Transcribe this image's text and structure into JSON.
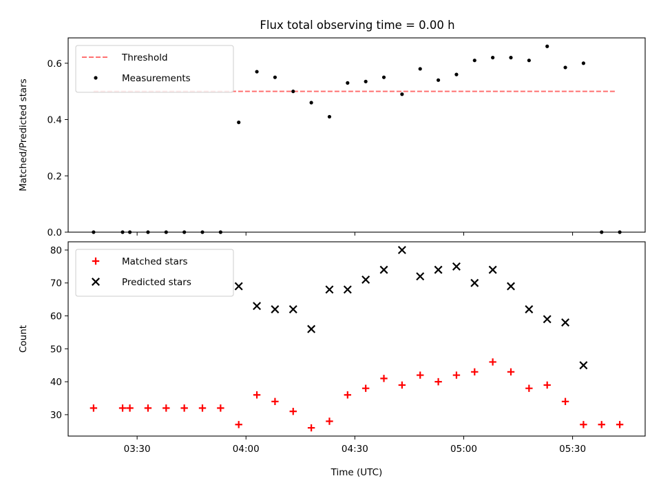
{
  "title": "Flux total observing time = 0.00 h",
  "colors": {
    "threshold": "#ff7070",
    "measurement": "#000000",
    "matched": "#ff0000",
    "predicted": "#000000"
  },
  "chart_data": [
    {
      "type": "scatter",
      "ylabel": "Matched/Predicted stars",
      "xlim": [
        "03:11",
        "05:50"
      ],
      "ylim": [
        0,
        0.69
      ],
      "yticks": [
        0.0,
        0.2,
        0.4,
        0.6
      ],
      "ytick_labels": [
        "0.0",
        "0.2",
        "0.4",
        "0.6"
      ],
      "legend_position": "upper-left",
      "series": [
        {
          "name": "Threshold",
          "kind": "dashed-line",
          "x": [
            "03:18",
            "05:42"
          ],
          "y": [
            0.5,
            0.5
          ]
        },
        {
          "name": "Measurements",
          "kind": "dot",
          "x": [
            "03:18",
            "03:26",
            "03:28",
            "03:33",
            "03:38",
            "03:43",
            "03:48",
            "03:53",
            "03:58",
            "04:03",
            "04:08",
            "04:13",
            "04:18",
            "04:23",
            "04:28",
            "04:33",
            "04:38",
            "04:43",
            "04:48",
            "04:53",
            "04:58",
            "05:03",
            "05:08",
            "05:13",
            "05:18",
            "05:23",
            "05:28",
            "05:33",
            "05:38",
            "05:43"
          ],
          "y": [
            0,
            0,
            0,
            0,
            0,
            0,
            0,
            0,
            0.39,
            0.57,
            0.55,
            0.5,
            0.46,
            0.41,
            0.53,
            0.535,
            0.55,
            0.49,
            0.58,
            0.54,
            0.56,
            0.61,
            0.62,
            0.62,
            0.61,
            0.66,
            0.585,
            0.6,
            0,
            0
          ]
        }
      ]
    },
    {
      "type": "scatter",
      "ylabel": "Count",
      "xlabel": "Time (UTC)",
      "xlim": [
        "03:11",
        "05:50"
      ],
      "ylim": [
        23.5,
        82.5
      ],
      "yticks": [
        30,
        40,
        50,
        60,
        70,
        80
      ],
      "ytick_labels": [
        "30",
        "40",
        "50",
        "60",
        "70",
        "80"
      ],
      "xticks": [
        "03:30",
        "04:00",
        "04:30",
        "05:00",
        "05:30"
      ],
      "xtick_labels": [
        "03:30",
        "04:00",
        "04:30",
        "05:00",
        "05:30"
      ],
      "legend_position": "upper-left",
      "series": [
        {
          "name": "Matched stars",
          "kind": "plus",
          "x": [
            "03:18",
            "03:26",
            "03:28",
            "03:33",
            "03:38",
            "03:43",
            "03:48",
            "03:53",
            "03:58",
            "04:03",
            "04:08",
            "04:13",
            "04:18",
            "04:23",
            "04:28",
            "04:33",
            "04:38",
            "04:43",
            "04:48",
            "04:53",
            "04:58",
            "05:03",
            "05:08",
            "05:13",
            "05:18",
            "05:23",
            "05:28",
            "05:33",
            "05:38",
            "05:43"
          ],
          "y": [
            32,
            32,
            32,
            32,
            32,
            32,
            32,
            32,
            27,
            36,
            34,
            31,
            26,
            28,
            36,
            38,
            41,
            39,
            42,
            40,
            42,
            43,
            46,
            43,
            38,
            39,
            34,
            27,
            27,
            27
          ]
        },
        {
          "name": "Predicted stars",
          "kind": "x",
          "x": [
            "03:58",
            "04:03",
            "04:08",
            "04:13",
            "04:18",
            "04:23",
            "04:28",
            "04:33",
            "04:38",
            "04:43",
            "04:48",
            "04:53",
            "04:58",
            "05:03",
            "05:08",
            "05:13",
            "05:18",
            "05:23",
            "05:28",
            "05:33"
          ],
          "y": [
            69,
            63,
            62,
            62,
            56,
            68,
            68,
            71,
            74,
            80,
            72,
            74,
            75,
            70,
            74,
            69,
            62,
            59,
            58,
            45
          ]
        }
      ]
    }
  ]
}
